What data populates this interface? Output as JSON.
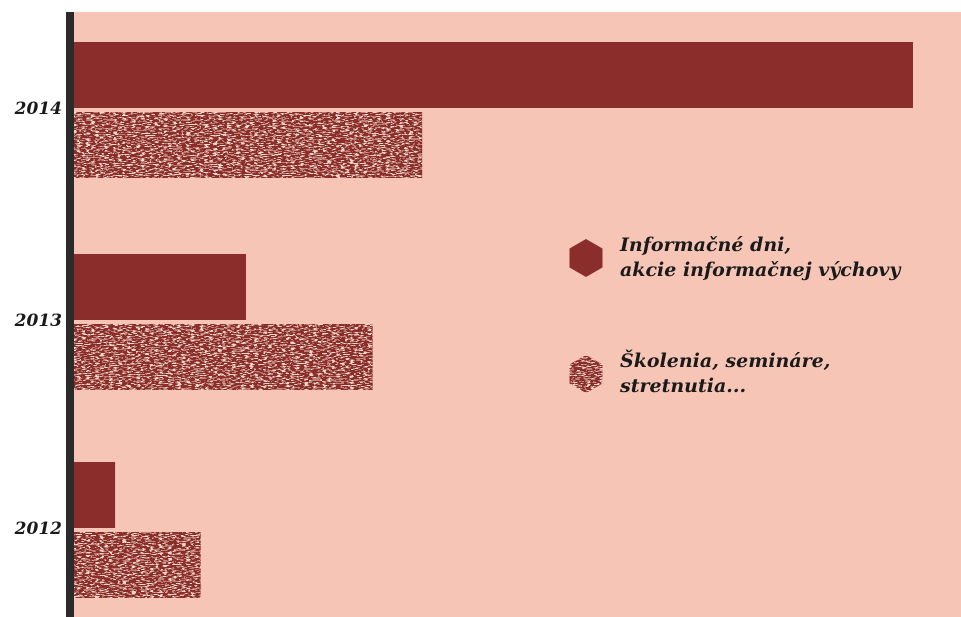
{
  "chart_data": {
    "type": "bar",
    "orientation": "horizontal",
    "categories": [
      "2014",
      "2013",
      "2012"
    ],
    "series": [
      {
        "name_lines": [
          "Informačné dni,",
          "akcie informačnej výchovy"
        ],
        "color": "#8b2d2b",
        "fill": "solid",
        "values": [
          100,
          20.5,
          4.9
        ]
      },
      {
        "name_lines": [
          "Školenia, semináre,",
          "stretnutia..."
        ],
        "color": "#8b2d2b",
        "fill": "texture",
        "values": [
          41.5,
          35.6,
          15.1
        ]
      }
    ],
    "xlim": [
      0,
      100
    ],
    "grid": false,
    "legend": "right"
  },
  "colors": {
    "plot_background": "#f7c5b6",
    "axis_line": "#2b2b2b",
    "bar": "#8b2d2b",
    "texture_light": "#f3d6cc"
  }
}
